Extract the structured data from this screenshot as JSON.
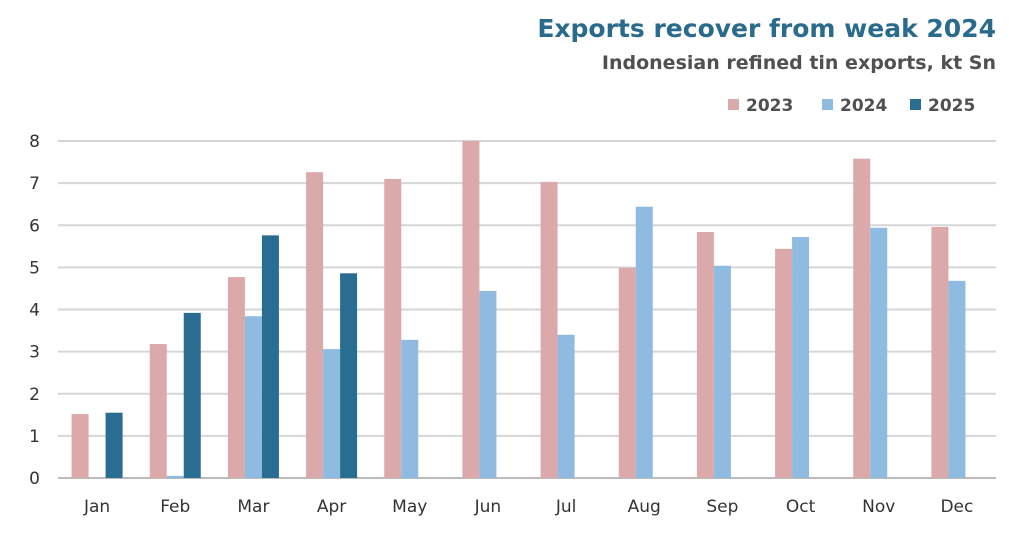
{
  "chart_data": {
    "type": "bar",
    "title": "Exports recover from weak 2024",
    "subtitle": "Indonesian refined tin exports, kt Sn",
    "xlabel": "",
    "ylabel": "",
    "ylim": [
      0,
      8
    ],
    "yticks": [
      "0",
      "1",
      "2",
      "3",
      "4",
      "5",
      "6",
      "7",
      "8"
    ],
    "grid": true,
    "legend_position": "top-right",
    "categories": [
      "Jan",
      "Feb",
      "Mar",
      "Apr",
      "May",
      "Jun",
      "Jul",
      "Aug",
      "Sep",
      "Oct",
      "Nov",
      "Dec"
    ],
    "series": [
      {
        "name": "2023",
        "color": "#dba9aa",
        "values": [
          1.52,
          3.18,
          4.77,
          7.26,
          7.1,
          8.0,
          7.03,
          4.99,
          5.84,
          5.44,
          7.58,
          5.96
        ]
      },
      {
        "name": "2024",
        "color": "#8fbbe0",
        "values": [
          null,
          0.05,
          3.84,
          3.06,
          3.28,
          4.44,
          3.4,
          6.44,
          5.04,
          5.72,
          5.94,
          4.68
        ]
      },
      {
        "name": "2025",
        "color": "#2a6d92",
        "values": [
          1.55,
          3.92,
          5.76,
          4.86,
          null,
          null,
          null,
          null,
          null,
          null,
          null,
          null
        ]
      }
    ]
  }
}
